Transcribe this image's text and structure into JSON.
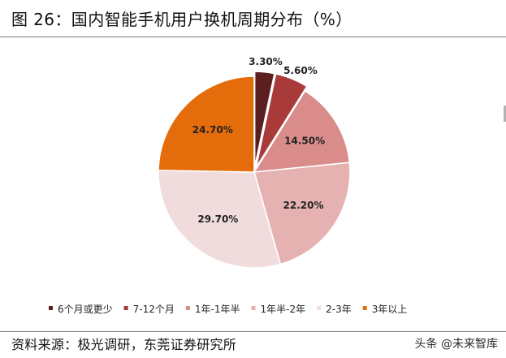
{
  "figure": {
    "title": "图 26：国内智能手机用户换机周期分布（%）",
    "source": "资料来源：极光调研，东莞证券研究所",
    "watermark": "头条 @未来智库"
  },
  "chart_data": {
    "type": "pie",
    "title": "",
    "value_unit": "%",
    "start_angle_deg": 0,
    "direction": "clockwise",
    "legend_position": "bottom",
    "categories": [
      "6个月或更少",
      "7-12个月",
      "1年-1年半",
      "1年半-2年",
      "2-3年",
      "3年以上"
    ],
    "values": [
      3.3,
      5.6,
      14.5,
      22.2,
      29.7,
      24.7
    ],
    "data_labels": [
      "3.30%",
      "5.60%",
      "14.50%",
      "22.20%",
      "29.70%",
      "24.70%"
    ],
    "colors": [
      "#5b1f1f",
      "#a83a3a",
      "#d98c8a",
      "#e6b2b1",
      "#f0dcdc",
      "#e46c0a"
    ],
    "label_colors": [
      "#222222",
      "#222222",
      "#222222",
      "#222222",
      "#222222",
      "#222222"
    ]
  }
}
